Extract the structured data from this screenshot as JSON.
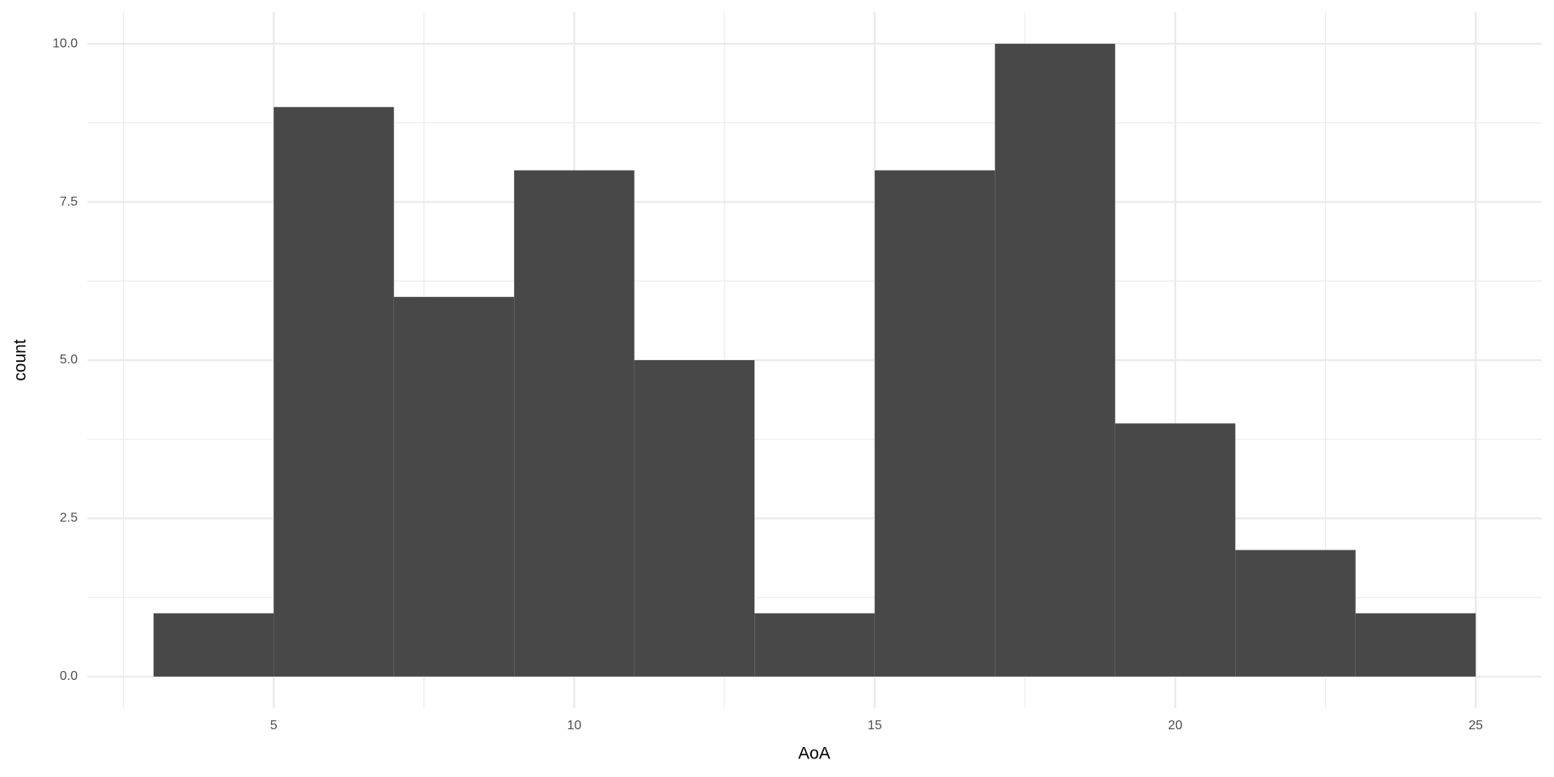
{
  "chart_data": {
    "type": "histogram",
    "x_label": "AoA",
    "y_label": "count",
    "bins": [
      3,
      5,
      7,
      9,
      11,
      13,
      15,
      17,
      19,
      21,
      23,
      25
    ],
    "values": [
      1,
      9,
      6,
      8,
      5,
      1,
      8,
      10,
      4,
      2,
      1
    ],
    "color": "#484848",
    "xlim": [
      1.9,
      26.1
    ],
    "xticks": [
      5,
      10,
      15,
      20,
      25
    ],
    "ylim": [
      -0.5,
      10.5
    ],
    "yticks": [
      {
        "value": 0,
        "label": "0.0"
      },
      2.5,
      {
        "value": 5,
        "label": "5.0"
      },
      7.5,
      {
        "value": 10,
        "label": "10.0"
      }
    ],
    "grid": true
  }
}
